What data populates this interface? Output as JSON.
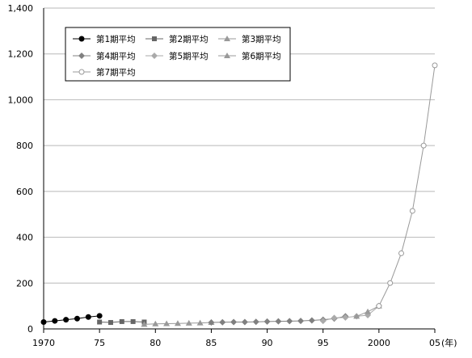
{
  "chart_data": {
    "type": "line",
    "xlim": [
      1970,
      2005
    ],
    "ylim": [
      0,
      1400
    ],
    "y_ticks": [
      0,
      200,
      400,
      600,
      800,
      1000,
      1200,
      1400
    ],
    "y_tick_labels": [
      "0",
      "200",
      "400",
      "600",
      "800",
      "1,000",
      "1,200",
      "1,400"
    ],
    "x_ticks": [
      1970,
      1975,
      1980,
      1985,
      1990,
      1995,
      2000,
      2005
    ],
    "x_tick_labels": [
      "1970",
      "75",
      "80",
      "85",
      "90",
      "95",
      "2000",
      "05"
    ],
    "x_unit_label": "(年)",
    "grid": "horizontal",
    "legend_position": "top-left",
    "series": [
      {
        "name": "第1期平均",
        "color": "#000000",
        "marker": "circle-filled",
        "x": [
          1970,
          1971,
          1972,
          1973,
          1974,
          1975
        ],
        "y": [
          30,
          35,
          40,
          45,
          52,
          57
        ]
      },
      {
        "name": "第2期平均",
        "color": "#666666",
        "marker": "square",
        "x": [
          1975,
          1976,
          1977,
          1978,
          1979
        ],
        "y": [
          30,
          28,
          32,
          32,
          30
        ]
      },
      {
        "name": "第3期平均",
        "color": "#999999",
        "marker": "triangle",
        "x": [
          1979,
          1980,
          1981,
          1982,
          1983,
          1984,
          1985
        ],
        "y": [
          20,
          22,
          23,
          24,
          25,
          26,
          28
        ]
      },
      {
        "name": "第4期平均",
        "color": "#808080",
        "marker": "diamond",
        "x": [
          1985,
          1986,
          1987,
          1988,
          1989,
          1990,
          1991,
          1992,
          1993,
          1994,
          1995,
          1996,
          1997
        ],
        "y": [
          28,
          29,
          30,
          30,
          31,
          32,
          33,
          34,
          35,
          37,
          40,
          45,
          55
        ]
      },
      {
        "name": "第5期平均",
        "color": "#aaaaaa",
        "marker": "diamond",
        "x": [
          1995,
          1996,
          1997,
          1998,
          1999,
          2000
        ],
        "y": [
          35,
          48,
          50,
          55,
          60,
          100
        ]
      },
      {
        "name": "第6期平均",
        "color": "#999999",
        "marker": "triangle",
        "x": [
          1998,
          1999,
          2000
        ],
        "y": [
          55,
          75,
          100
        ]
      },
      {
        "name": "第7期平均",
        "color": "#999999",
        "marker": "circle-open",
        "x": [
          2000,
          2001,
          2002,
          2003,
          2004,
          2005
        ],
        "y": [
          100,
          200,
          330,
          515,
          800,
          1150
        ]
      }
    ]
  }
}
